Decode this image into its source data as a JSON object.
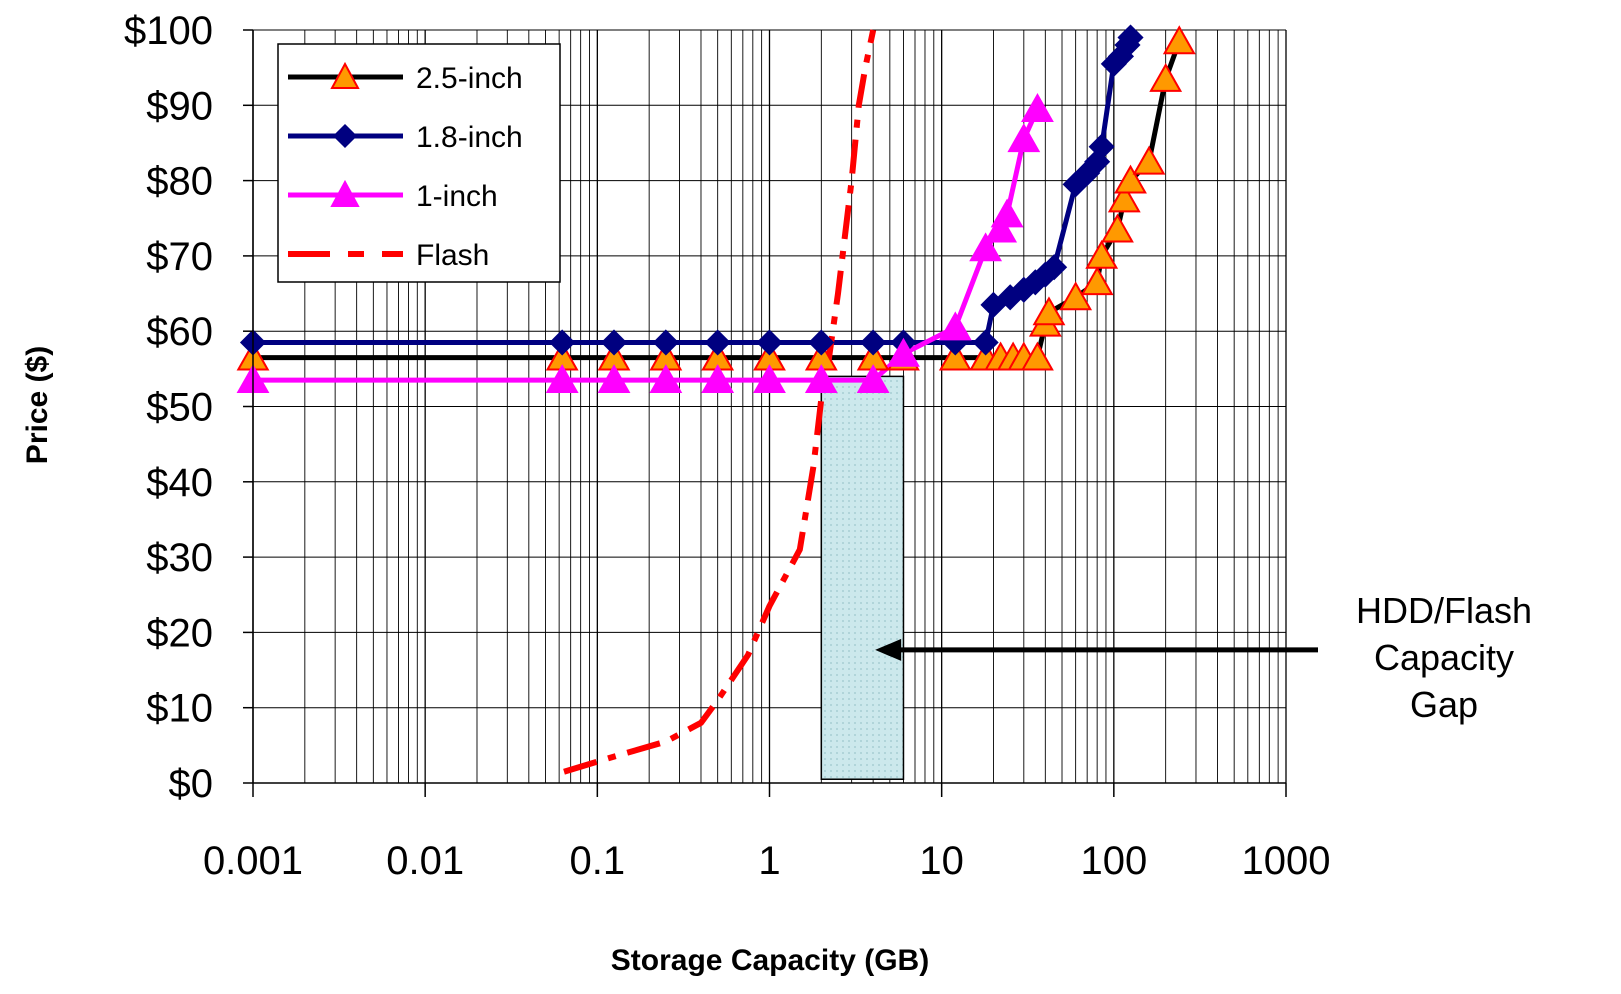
{
  "chart_data": {
    "type": "line",
    "title": "",
    "xlabel": "Storage Capacity (GB)",
    "ylabel": "Price ($)",
    "x_scale": "log",
    "xlim": [
      0.001,
      1000
    ],
    "ylim": [
      0,
      100
    ],
    "x_ticks": [
      0.001,
      0.01,
      0.1,
      1,
      10,
      100,
      1000
    ],
    "x_tick_labels": [
      "0.001",
      "0.01",
      "0.1",
      "1",
      "10",
      "100",
      "1000"
    ],
    "y_ticks": [
      0,
      10,
      20,
      30,
      40,
      50,
      60,
      70,
      80,
      90,
      100
    ],
    "y_tick_labels": [
      "$0",
      "$10",
      "$20",
      "$30",
      "$40",
      "$50",
      "$60",
      "$70",
      "$80",
      "$90",
      "$100"
    ],
    "grid": true,
    "legend_position": "top-left",
    "series": [
      {
        "name": "2.5-inch",
        "color": "#000000",
        "marker": "triangle",
        "marker_fill": "#ff9900",
        "marker_edge": "#ff0000",
        "line_style": "solid",
        "points": [
          [
            0.001,
            56.5
          ],
          [
            0.0625,
            56.5
          ],
          [
            0.125,
            56.5
          ],
          [
            0.25,
            56.5
          ],
          [
            0.5,
            56.5
          ],
          [
            1,
            56.5
          ],
          [
            2,
            56.5
          ],
          [
            4,
            56.5
          ],
          [
            6,
            56.5
          ],
          [
            12,
            56.5
          ],
          [
            18,
            56.5
          ],
          [
            22,
            56.5
          ],
          [
            26,
            56.5
          ],
          [
            30,
            56.5
          ],
          [
            36,
            56.5
          ],
          [
            40,
            61
          ],
          [
            42,
            62.5
          ],
          [
            60,
            64.5
          ],
          [
            80,
            66.5
          ],
          [
            85,
            70
          ],
          [
            105,
            73.5
          ],
          [
            115,
            77.5
          ],
          [
            125,
            80
          ],
          [
            160,
            82.5
          ],
          [
            200,
            93.5
          ],
          [
            240,
            98.5
          ]
        ]
      },
      {
        "name": "1.8-inch",
        "color": "#000080",
        "marker": "diamond",
        "marker_fill": "#000080",
        "marker_edge": "#000080",
        "line_style": "solid",
        "points": [
          [
            0.001,
            58.5
          ],
          [
            0.0625,
            58.5
          ],
          [
            0.125,
            58.5
          ],
          [
            0.25,
            58.5
          ],
          [
            0.5,
            58.5
          ],
          [
            1,
            58.5
          ],
          [
            2,
            58.5
          ],
          [
            4,
            58.5
          ],
          [
            6,
            58.5
          ],
          [
            12,
            58.5
          ],
          [
            18,
            58.5
          ],
          [
            20,
            63.5
          ],
          [
            25,
            64.5
          ],
          [
            30,
            65.5
          ],
          [
            35,
            66.5
          ],
          [
            40,
            67.5
          ],
          [
            45,
            68.5
          ],
          [
            60,
            79.5
          ],
          [
            70,
            81
          ],
          [
            80,
            82.5
          ],
          [
            85,
            84.5
          ],
          [
            100,
            95.5
          ],
          [
            110,
            96.5
          ],
          [
            120,
            98
          ],
          [
            125,
            99
          ]
        ]
      },
      {
        "name": "1-inch",
        "color": "#ff00ff",
        "marker": "triangle",
        "marker_fill": "#ff00ff",
        "marker_edge": "#ff00ff",
        "line_style": "solid",
        "points": [
          [
            0.001,
            53.5
          ],
          [
            0.0625,
            53.5
          ],
          [
            0.125,
            53.5
          ],
          [
            0.25,
            53.5
          ],
          [
            0.5,
            53.5
          ],
          [
            1,
            53.5
          ],
          [
            2,
            53.5
          ],
          [
            4,
            53.5
          ],
          [
            6,
            57
          ],
          [
            12,
            60.5
          ],
          [
            18,
            71
          ],
          [
            22,
            73.5
          ],
          [
            24,
            75.5
          ],
          [
            30,
            85.5
          ],
          [
            36,
            89.5
          ]
        ]
      },
      {
        "name": "Flash",
        "color": "#ff0000",
        "marker": "none",
        "line_style": "dash-dot",
        "points": [
          [
            0.064,
            1.5
          ],
          [
            0.125,
            3.5
          ],
          [
            0.25,
            5.5
          ],
          [
            0.4,
            8
          ],
          [
            0.5,
            11
          ],
          [
            0.75,
            17
          ],
          [
            1,
            23.5
          ],
          [
            1.5,
            31
          ],
          [
            1.8,
            42
          ],
          [
            2,
            51
          ],
          [
            2.2,
            56
          ],
          [
            2.5,
            65
          ],
          [
            3,
            80
          ],
          [
            3.3,
            90
          ],
          [
            3.6,
            95
          ],
          [
            4,
            100
          ]
        ]
      }
    ],
    "annotations": [
      {
        "type": "shaded-region",
        "x_range": [
          2,
          6
        ],
        "y_range": [
          0.5,
          54
        ],
        "fill": "#cce8ec"
      },
      {
        "type": "arrow-label",
        "lines": [
          "HDD/Flash",
          "Capacity",
          "Gap"
        ],
        "points_to": [
          4,
          19
        ]
      }
    ]
  }
}
